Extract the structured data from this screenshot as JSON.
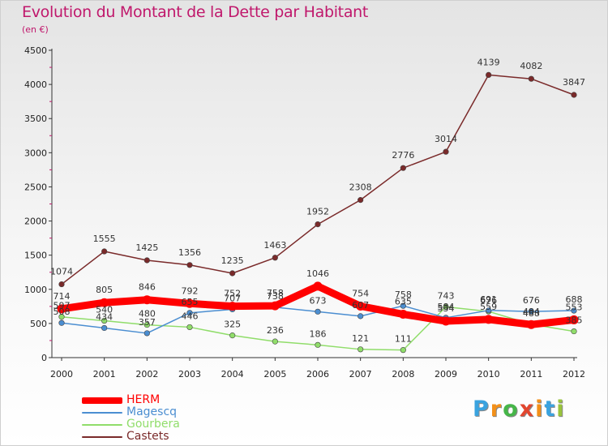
{
  "chart_data": {
    "type": "line",
    "title": "Evolution du Montant de la Dette par Habitant",
    "subtitle": "(en €)",
    "x": [
      2000,
      2001,
      2002,
      2003,
      2004,
      2005,
      2006,
      2007,
      2008,
      2009,
      2010,
      2011,
      2012
    ],
    "ylim": [
      0,
      4500
    ],
    "yticks": [
      0,
      500,
      1000,
      1500,
      2000,
      2500,
      3000,
      3500,
      4000,
      4500
    ],
    "grid": false,
    "legend_position": "bottom-left",
    "series": [
      {
        "name": "HERM",
        "color": "#ff0000",
        "values": [
          714,
          805,
          846,
          792,
          752,
          758,
          1046,
          754,
          635,
          534,
          559,
          484,
          553
        ]
      },
      {
        "name": "Magescq",
        "color": "#4b8ed1",
        "values": [
          508,
          434,
          357,
          655,
          707,
          738,
          673,
          607,
          758,
          584,
          691,
          676,
          688
        ]
      },
      {
        "name": "Gourbera",
        "color": "#90dd6a",
        "values": [
          597,
          540,
          480,
          446,
          325,
          236,
          186,
          121,
          111,
          743,
          676,
          488,
          385
        ]
      },
      {
        "name": "Castets",
        "color": "#7a2a2a",
        "values": [
          1074,
          1555,
          1425,
          1356,
          1235,
          1463,
          1952,
          2308,
          2776,
          3014,
          4139,
          4082,
          3847
        ]
      }
    ]
  },
  "logo": {
    "letters": [
      "P",
      "r",
      "o",
      "x",
      "i",
      "t",
      "i"
    ],
    "colors": [
      "#3aa3df",
      "#f39019",
      "#46b649",
      "#e2462f",
      "#f39019",
      "#3aa3df",
      "#9ac43c"
    ]
  }
}
